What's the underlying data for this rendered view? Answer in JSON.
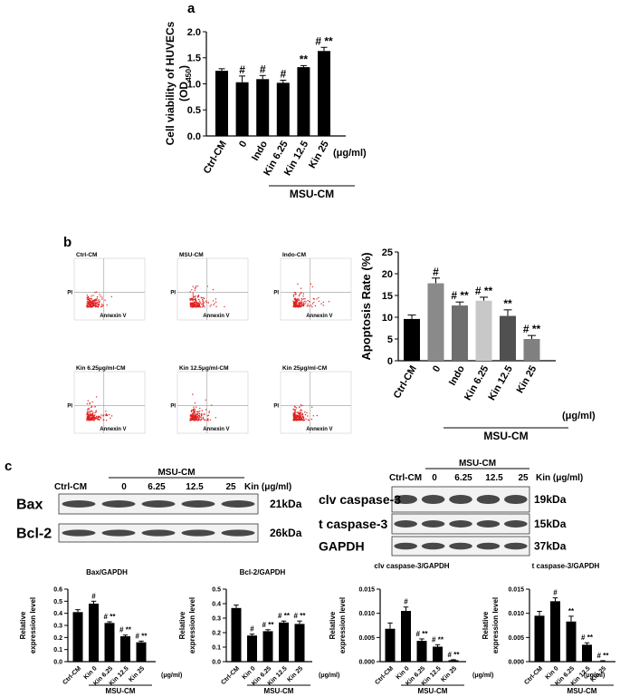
{
  "panel_labels": [
    "a",
    "b",
    "c"
  ],
  "chart_data": [
    {
      "type": "bar",
      "y_label": [
        "Cell viability of HUVECs"
      ],
      "y_label_parts": [
        "(OD",
        "450",
        ")"
      ],
      "categories": [
        "Ctrl-CM",
        "0",
        "Indo",
        "Kin 6.25",
        "Kin 12.5",
        "Kin 25"
      ],
      "values": [
        1.25,
        1.03,
        1.09,
        1.02,
        1.32,
        1.63
      ],
      "errors": [
        0.04,
        0.12,
        0.07,
        0.05,
        0.03,
        0.07
      ],
      "annotations": [
        null,
        "#",
        "#",
        "#",
        "**",
        "# **"
      ],
      "color": "#000000",
      "unit": "(μg/ml)",
      "group": "MSU-CM",
      "ylim": [
        0,
        2
      ],
      "yticks": [
        {
          "value": 0,
          "label": "0.0"
        },
        {
          "value": 0.5,
          "label": "0.5"
        },
        {
          "value": 1,
          "label": "1.0"
        },
        {
          "value": 1.5,
          "label": "1.5"
        },
        {
          "value": 2,
          "label": "2.0"
        }
      ]
    },
    {
      "type": "bar",
      "y_label": [
        "Apoptosis Rate (%)"
      ],
      "categories": [
        "Ctrl-CM",
        "0",
        "Indo",
        "Kin 6.25",
        "Kin 12.5",
        "Kin 25"
      ],
      "values": [
        9.6,
        17.8,
        12.7,
        13.8,
        10.3,
        5.0
      ],
      "errors": [
        0.9,
        1.2,
        0.8,
        0.8,
        1.4,
        0.8
      ],
      "annotations": [
        null,
        "#",
        "# **",
        "# **",
        "**",
        "# **"
      ],
      "colors": [
        "#000000",
        "#8a8a8a",
        "#6e6e6e",
        "#c8c8c8",
        "#505050",
        "#808080"
      ],
      "unit": "(μg/ml)",
      "group": "MSU-CM",
      "ylim": [
        0,
        25
      ],
      "yticks": [
        0,
        5,
        10,
        15,
        20,
        25
      ]
    },
    {
      "type": "bar",
      "title": "Bax/GAPDH",
      "y_label": [
        "Relative",
        "expression level"
      ],
      "categories": [
        "Ctrl-CM",
        "Kin 0",
        "Kin 6.25",
        "Kin 12.5",
        "Kin 25"
      ],
      "values": [
        0.41,
        0.48,
        0.32,
        0.21,
        0.16
      ],
      "errors": [
        0.02,
        0.02,
        0.01,
        0.01,
        0.01
      ],
      "annotations": [
        null,
        "#",
        "# **",
        "# **",
        "# **"
      ],
      "color": "#000000",
      "unit": "(μg/ml)",
      "group": "MSU-CM",
      "ylim": [
        0,
        0.6
      ],
      "yticks": [
        {
          "value": 0,
          "label": "0.0"
        },
        {
          "value": 0.1,
          "label": "0.1"
        },
        {
          "value": 0.2,
          "label": "0.2"
        },
        {
          "value": 0.3,
          "label": "0.3"
        },
        {
          "value": 0.4,
          "label": "0.4"
        },
        {
          "value": 0.5,
          "label": "0.5"
        },
        {
          "value": 0.6,
          "label": "0.6"
        }
      ]
    },
    {
      "type": "bar",
      "title": "Bcl-2/GAPDH",
      "y_label": [
        "Relative",
        "expression level"
      ],
      "categories": [
        "Ctrl-CM",
        "Kin 0",
        "Kin 6.25",
        "Kin 12.5",
        "Kin 25"
      ],
      "values": [
        0.37,
        0.18,
        0.21,
        0.27,
        0.26
      ],
      "errors": [
        0.02,
        0.01,
        0.01,
        0.01,
        0.02
      ],
      "annotations": [
        null,
        "#",
        "# **",
        "# **",
        "# **"
      ],
      "color": "#000000",
      "unit": "(μg/ml)",
      "group": "MSU-CM",
      "ylim": [
        0,
        0.5
      ],
      "yticks": [
        {
          "value": 0,
          "label": "0.0"
        },
        {
          "value": 0.1,
          "label": "0.1"
        },
        {
          "value": 0.2,
          "label": "0.2"
        },
        {
          "value": 0.3,
          "label": "0.3"
        },
        {
          "value": 0.4,
          "label": "0.4"
        },
        {
          "value": 0.5,
          "label": "0.5"
        }
      ]
    },
    {
      "type": "bar",
      "title": "clv caspase-3/GAPDH",
      "y_label": [
        "Relative",
        "expression level"
      ],
      "categories": [
        "Ctrl-CM",
        "Kin 0",
        "Kin 6.25",
        "Kin 12.5",
        "Kin 25"
      ],
      "values": [
        0.0068,
        0.0105,
        0.0043,
        0.0031,
        0.0003
      ],
      "errors": [
        0.0012,
        0.0008,
        0.0004,
        0.0004,
        0.0001
      ],
      "annotations": [
        null,
        "#",
        "# **",
        "# **",
        "# **"
      ],
      "color": "#000000",
      "unit": "(μg/ml)",
      "group": "MSU-CM",
      "ylim": [
        0,
        0.015
      ],
      "yticks": [
        {
          "value": 0,
          "label": "0.000"
        },
        {
          "value": 0.005,
          "label": "0.005"
        },
        {
          "value": 0.01,
          "label": "0.010"
        },
        {
          "value": 0.015,
          "label": "0.015"
        }
      ]
    },
    {
      "type": "bar",
      "title": "t caspase-3/GAPDH",
      "y_label": [
        "Relative",
        "expression level"
      ],
      "categories": [
        "Ctrl-CM",
        "Kin 0",
        "Kin 6.25",
        "Kin 12.5",
        "Kin 25"
      ],
      "values": [
        0.0095,
        0.0125,
        0.0083,
        0.0035,
        0.0001
      ],
      "errors": [
        0.0009,
        0.0007,
        0.0011,
        0.0004,
        0.0001
      ],
      "annotations": [
        null,
        "#",
        "**",
        "# **",
        "# **"
      ],
      "color": "#000000",
      "unit": "(μg/ml)",
      "group": "MSU-CM",
      "ylim": [
        0,
        0.015
      ],
      "yticks": [
        {
          "value": 0,
          "label": "0.000"
        },
        {
          "value": 0.005,
          "label": "0.005"
        },
        {
          "value": 0.01,
          "label": "0.010"
        },
        {
          "value": 0.015,
          "label": "0.015"
        }
      ]
    }
  ],
  "flow": [
    {
      "title": "Ctrl-CM",
      "y_label": "PI",
      "x_label": "Annexin V"
    },
    {
      "title": "MSU-CM",
      "y_label": "PI",
      "x_label": "Annexin V"
    },
    {
      "title": "Indo-CM",
      "y_label": "PI",
      "x_label": "Annexin V"
    },
    {
      "title": "Kin 6.25μg/ml-CM",
      "y_label": "PI",
      "x_label": "Annexin V"
    },
    {
      "title": "Kin 12.5μg/ml-CM",
      "y_label": "PI",
      "x_label": "Annexin V"
    },
    {
      "title": "Kin 25μg/ml-CM",
      "y_label": "PI",
      "x_label": "Annexin V"
    }
  ],
  "blots": [
    {
      "group": "MSU-CM",
      "lanes": [
        "Ctrl-CM",
        "0",
        "6.25",
        "12.5",
        "25"
      ],
      "unit": "Kin (μg/ml)",
      "rows": [
        {
          "name": "Bax",
          "size": "21kDa"
        },
        {
          "name": "Bcl-2",
          "size": "26kDa"
        }
      ]
    },
    {
      "group": "MSU-CM",
      "lanes": [
        "Ctrl-CM",
        "0",
        "6.25",
        "12.5",
        "25"
      ],
      "unit": "Kin (μg/ml)",
      "rows": [
        {
          "name": "clv caspase-3",
          "size": "19kDa"
        },
        {
          "name": "t caspase-3",
          "size": "15kDa"
        },
        {
          "name": "GAPDH",
          "size": "37kDa"
        }
      ]
    }
  ]
}
